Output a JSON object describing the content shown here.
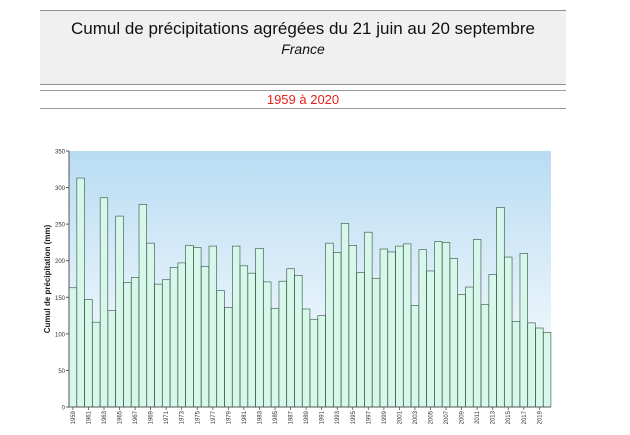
{
  "header": {
    "title": "Cumul de précipitations agrégées du 21 juin au 20 septembre",
    "subtitle": "France",
    "period": "1959 à 2020"
  },
  "colors": {
    "plot_bg_top": "#b9dcf3",
    "plot_bg_bottom": "#ffffff",
    "bar_fill": "#d6f7ea",
    "bar_stroke": "#2f4f3f",
    "period_text": "#e8201a"
  },
  "chart_data": {
    "type": "bar",
    "title": "",
    "xlabel": "",
    "ylabel": "Cumul de précipitation (mm)",
    "ylim": [
      0,
      350
    ],
    "yticks": [
      0,
      50,
      100,
      150,
      200,
      250,
      300,
      350
    ],
    "grid": false,
    "x_tick_labels": [
      "1959",
      "1961",
      "1963",
      "1965",
      "1967",
      "1969",
      "1971",
      "1973",
      "1975",
      "1977",
      "1979",
      "1981",
      "1983",
      "1985",
      "1987",
      "1989",
      "1991",
      "1993",
      "1995",
      "1997",
      "1999",
      "2001",
      "2003",
      "2005",
      "2007",
      "2009",
      "2011",
      "2013",
      "2015",
      "2017",
      "2019"
    ],
    "categories": [
      "1959",
      "1960",
      "1961",
      "1962",
      "1963",
      "1964",
      "1965",
      "1966",
      "1967",
      "1968",
      "1969",
      "1970",
      "1971",
      "1972",
      "1973",
      "1974",
      "1975",
      "1976",
      "1977",
      "1978",
      "1979",
      "1980",
      "1981",
      "1982",
      "1983",
      "1984",
      "1985",
      "1986",
      "1987",
      "1988",
      "1989",
      "1990",
      "1991",
      "1992",
      "1993",
      "1994",
      "1995",
      "1996",
      "1997",
      "1998",
      "1999",
      "2000",
      "2001",
      "2002",
      "2003",
      "2004",
      "2005",
      "2006",
      "2007",
      "2008",
      "2009",
      "2010",
      "2011",
      "2012",
      "2013",
      "2014",
      "2015",
      "2016",
      "2017",
      "2018",
      "2019",
      "2020"
    ],
    "values": [
      163,
      313,
      147,
      116,
      286,
      132,
      261,
      170,
      177,
      277,
      224,
      168,
      174,
      191,
      197,
      221,
      218,
      192,
      220,
      159,
      136,
      220,
      193,
      183,
      217,
      171,
      135,
      172,
      189,
      180,
      134,
      120,
      125,
      224,
      211,
      251,
      221,
      184,
      239,
      176,
      216,
      212,
      220,
      223,
      139,
      215,
      186,
      226,
      225,
      203,
      154,
      164,
      229,
      140,
      181,
      273,
      205,
      117,
      210,
      115,
      108,
      102
    ]
  }
}
